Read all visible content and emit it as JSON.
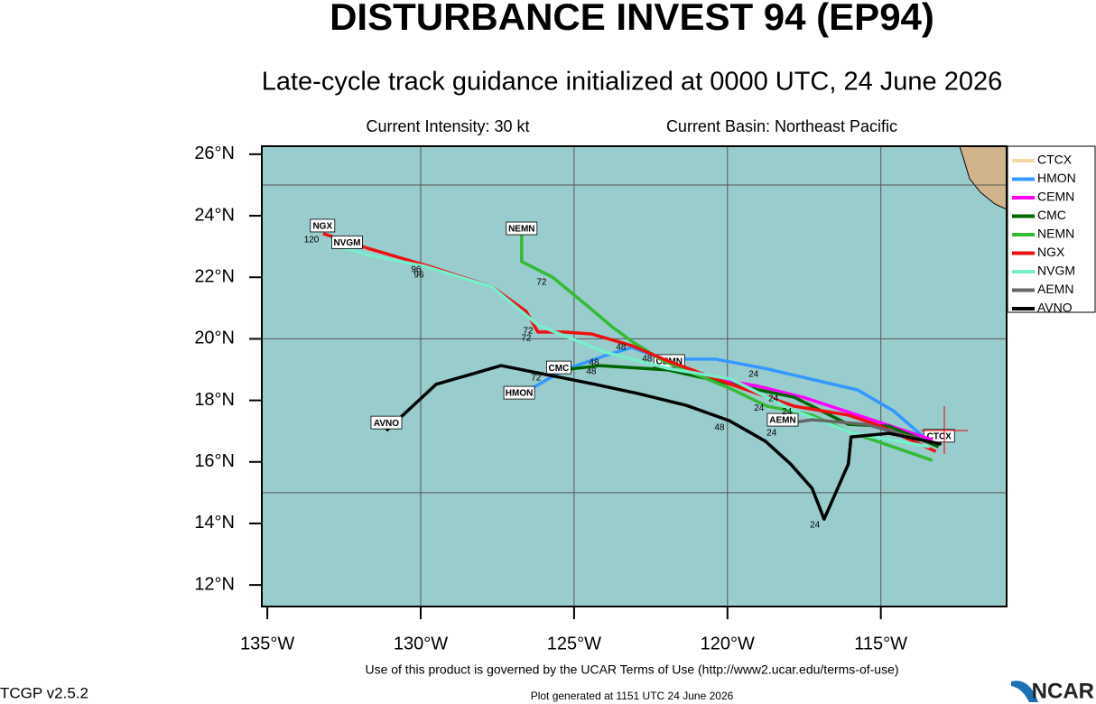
{
  "header": {
    "title": "DISTURBANCE INVEST 94 (EP94)",
    "subtitle": "Late-cycle track guidance initialized at 0000 UTC, 24 June 2026",
    "intensity": "Current Intensity: 30 kt",
    "basin": "Current Basin: Northeast Pacific"
  },
  "map": {
    "xlim": [
      -135.18,
      -110.9
    ],
    "ylim": [
      11.3,
      26.26
    ],
    "xticks": [
      {
        "value": -135,
        "label": "135°W"
      },
      {
        "value": -130,
        "label": "130°W"
      },
      {
        "value": -125,
        "label": "125°W"
      },
      {
        "value": -120,
        "label": "120°W"
      },
      {
        "value": -115,
        "label": "115°W"
      }
    ],
    "yticks": [
      {
        "value": 12,
        "label": "12°N"
      },
      {
        "value": 14,
        "label": "14°N"
      },
      {
        "value": 16,
        "label": "16°N"
      },
      {
        "value": 18,
        "label": "18°N"
      },
      {
        "value": 20,
        "label": "20°N"
      },
      {
        "value": 22,
        "label": "22°N"
      },
      {
        "value": 24,
        "label": "24°N"
      },
      {
        "value": 26,
        "label": "26°N"
      }
    ],
    "grid_lon": [
      -130,
      -125,
      -120,
      -115
    ],
    "grid_lat": [
      15,
      20,
      25
    ],
    "tracks": [
      {
        "name": "CTCX",
        "color": "#f7d9a8",
        "lon": [],
        "lat": [],
        "label_lon": -113.1,
        "label_lat": 16.85
      },
      {
        "name": "HMON",
        "color": "#3399ff",
        "lon": [
          -113.41,
          -114.59,
          -115.76,
          -118.79,
          -120.38,
          -122.09,
          -123.12,
          -124.06,
          -125.32,
          -126.79
        ],
        "lat": [
          16.64,
          17.66,
          18.34,
          19.04,
          19.34,
          19.34,
          19.72,
          19.43,
          18.99,
          18.16
        ],
        "label_lon": -126.79,
        "label_lat": 18.25
      },
      {
        "name": "CEMN",
        "color": "#ff00ff",
        "lon": [
          -113.32,
          -115.76,
          -117.53,
          -119.0,
          -121.21,
          -122.09
        ],
        "lat": [
          16.72,
          17.52,
          18.1,
          18.46,
          18.84,
          19.28
        ],
        "label_lon": -121.9,
        "label_lat": 19.28
      },
      {
        "name": "CMC",
        "color": "#006600",
        "lon": [
          -113.12,
          -114.74,
          -116.06,
          -117.82,
          -119.94,
          -121.94,
          -124.15,
          -125.88
        ],
        "lat": [
          16.49,
          17.16,
          17.22,
          18.1,
          18.54,
          18.99,
          19.13,
          18.93
        ],
        "label_lon": -125.5,
        "label_lat": 19.07
      },
      {
        "name": "NEMN",
        "color": "#33bb33",
        "lon": [
          -113.32,
          -116.06,
          -117.24,
          -118.71,
          -119.94,
          -122.09,
          -123.12,
          -123.76,
          -124.53,
          -125.71,
          -126.71,
          -126.71
        ],
        "lat": [
          16.05,
          16.99,
          17.52,
          17.81,
          18.4,
          19.28,
          19.92,
          20.39,
          21.04,
          22.01,
          22.51,
          23.59
        ],
        "label_lon": -126.71,
        "label_lat": 23.59
      },
      {
        "name": "NGX",
        "color": "#ee1111",
        "lon": [
          -113.21,
          -115.03,
          -116.06,
          -117.82,
          -119.94,
          -121.94,
          -123.12,
          -124.44,
          -125.32,
          -126.18,
          -126.56,
          -127.68,
          -129.74,
          -131.65,
          -133.18
        ],
        "lat": [
          16.34,
          17.17,
          17.52,
          17.81,
          18.54,
          19.28,
          19.78,
          20.16,
          20.22,
          20.22,
          20.89,
          21.69,
          22.36,
          22.92,
          23.42
        ],
        "label_lon": -133.2,
        "label_lat": 23.68
      },
      {
        "name": "NVGM",
        "color": "#77eecc",
        "lon": [
          -113.41,
          -115.91,
          -117.82,
          -119.88,
          -121.94,
          -124.0,
          -125.47,
          -126.18,
          -127.68,
          -129.88,
          -131.65,
          -132.97
        ],
        "lat": [
          16.49,
          16.93,
          17.66,
          18.69,
          19.04,
          19.57,
          20.16,
          20.45,
          21.69,
          22.36,
          22.71,
          23.09
        ],
        "label_lon": -132.4,
        "label_lat": 23.14
      },
      {
        "name": "AEMN",
        "color": "#666666",
        "lon": [
          -113.41,
          -115.47,
          -117.24,
          -118.24
        ],
        "lat": [
          16.64,
          17.22,
          17.37,
          17.22
        ],
        "label_lon": -118.2,
        "label_lat": 17.37
      },
      {
        "name": "AVNO",
        "color": "#000000",
        "lon": [
          -113.03,
          -114.74,
          -115.97,
          -116.06,
          -116.85,
          -117.24,
          -117.94,
          -118.76,
          -119.94,
          -121.35,
          -122.91,
          -124.41,
          -127.38,
          -129.5,
          -131.12
        ],
        "lat": [
          16.58,
          16.93,
          16.81,
          15.93,
          14.14,
          15.14,
          15.93,
          16.67,
          17.34,
          17.84,
          18.22,
          18.54,
          19.13,
          18.52,
          17.02
        ],
        "label_lon": -131.12,
        "label_lat": 17.28
      }
    ],
    "hour_labels": [
      {
        "text": "120",
        "lon": -133.56,
        "lat": 23.21
      },
      {
        "text": "96",
        "lon": -130.15,
        "lat": 22.24
      },
      {
        "text": "96",
        "lon": -130.06,
        "lat": 22.07
      },
      {
        "text": "72",
        "lon": -126.06,
        "lat": 21.83
      },
      {
        "text": "72",
        "lon": -126.5,
        "lat": 20.25
      },
      {
        "text": "72",
        "lon": -126.56,
        "lat": 20.01
      },
      {
        "text": "48",
        "lon": -123.47,
        "lat": 19.72
      },
      {
        "text": "48",
        "lon": -124.35,
        "lat": 19.22
      },
      {
        "text": "48",
        "lon": -124.44,
        "lat": 18.93
      },
      {
        "text": "72",
        "lon": -126.24,
        "lat": 18.72
      },
      {
        "text": "48",
        "lon": -122.62,
        "lat": 19.34
      },
      {
        "text": "24",
        "lon": -119.15,
        "lat": 18.84
      },
      {
        "text": "24",
        "lon": -118.5,
        "lat": 18.05
      },
      {
        "text": "24",
        "lon": -118.97,
        "lat": 17.75
      },
      {
        "text": "24",
        "lon": -118.06,
        "lat": 17.63
      },
      {
        "text": "24",
        "lon": -118.56,
        "lat": 16.93
      },
      {
        "text": "48",
        "lon": -120.26,
        "lat": 17.11
      },
      {
        "text": "24",
        "lon": -117.15,
        "lat": 13.94
      }
    ]
  },
  "footer": {
    "terms": "Use of this product is governed by the UCAR Terms of Use (http://www2.ucar.edu/terms-of-use)",
    "version": "TCGP v2.5.2",
    "generated": "Plot generated at 1151 UTC   24 June 2026",
    "logo": "NCAR"
  }
}
